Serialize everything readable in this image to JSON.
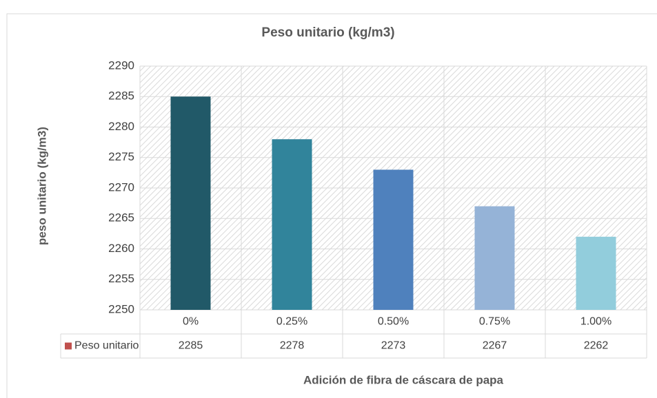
{
  "chart_data": {
    "type": "bar",
    "title": "Peso unitario (kg/m3)",
    "y_label": "peso unitario (kg/m3)",
    "x_label": "Adición de fibra de cáscara de papa",
    "categories": [
      "0%",
      "0.25%",
      "0.50%",
      "0.75%",
      "1.00%"
    ],
    "series": [
      {
        "name": "Peso unitario",
        "color": "#c0504d",
        "values": [
          2285,
          2278,
          2273,
          2267,
          2262
        ],
        "bar_colors": [
          "#215968",
          "#31849b",
          "#4f81bd",
          "#95b3d7",
          "#92cddc"
        ]
      }
    ],
    "ylim": [
      2250,
      2290
    ],
    "yticks": [
      2250,
      2255,
      2260,
      2265,
      2270,
      2275,
      2280,
      2285,
      2290
    ],
    "grid": true,
    "data_table": true
  }
}
